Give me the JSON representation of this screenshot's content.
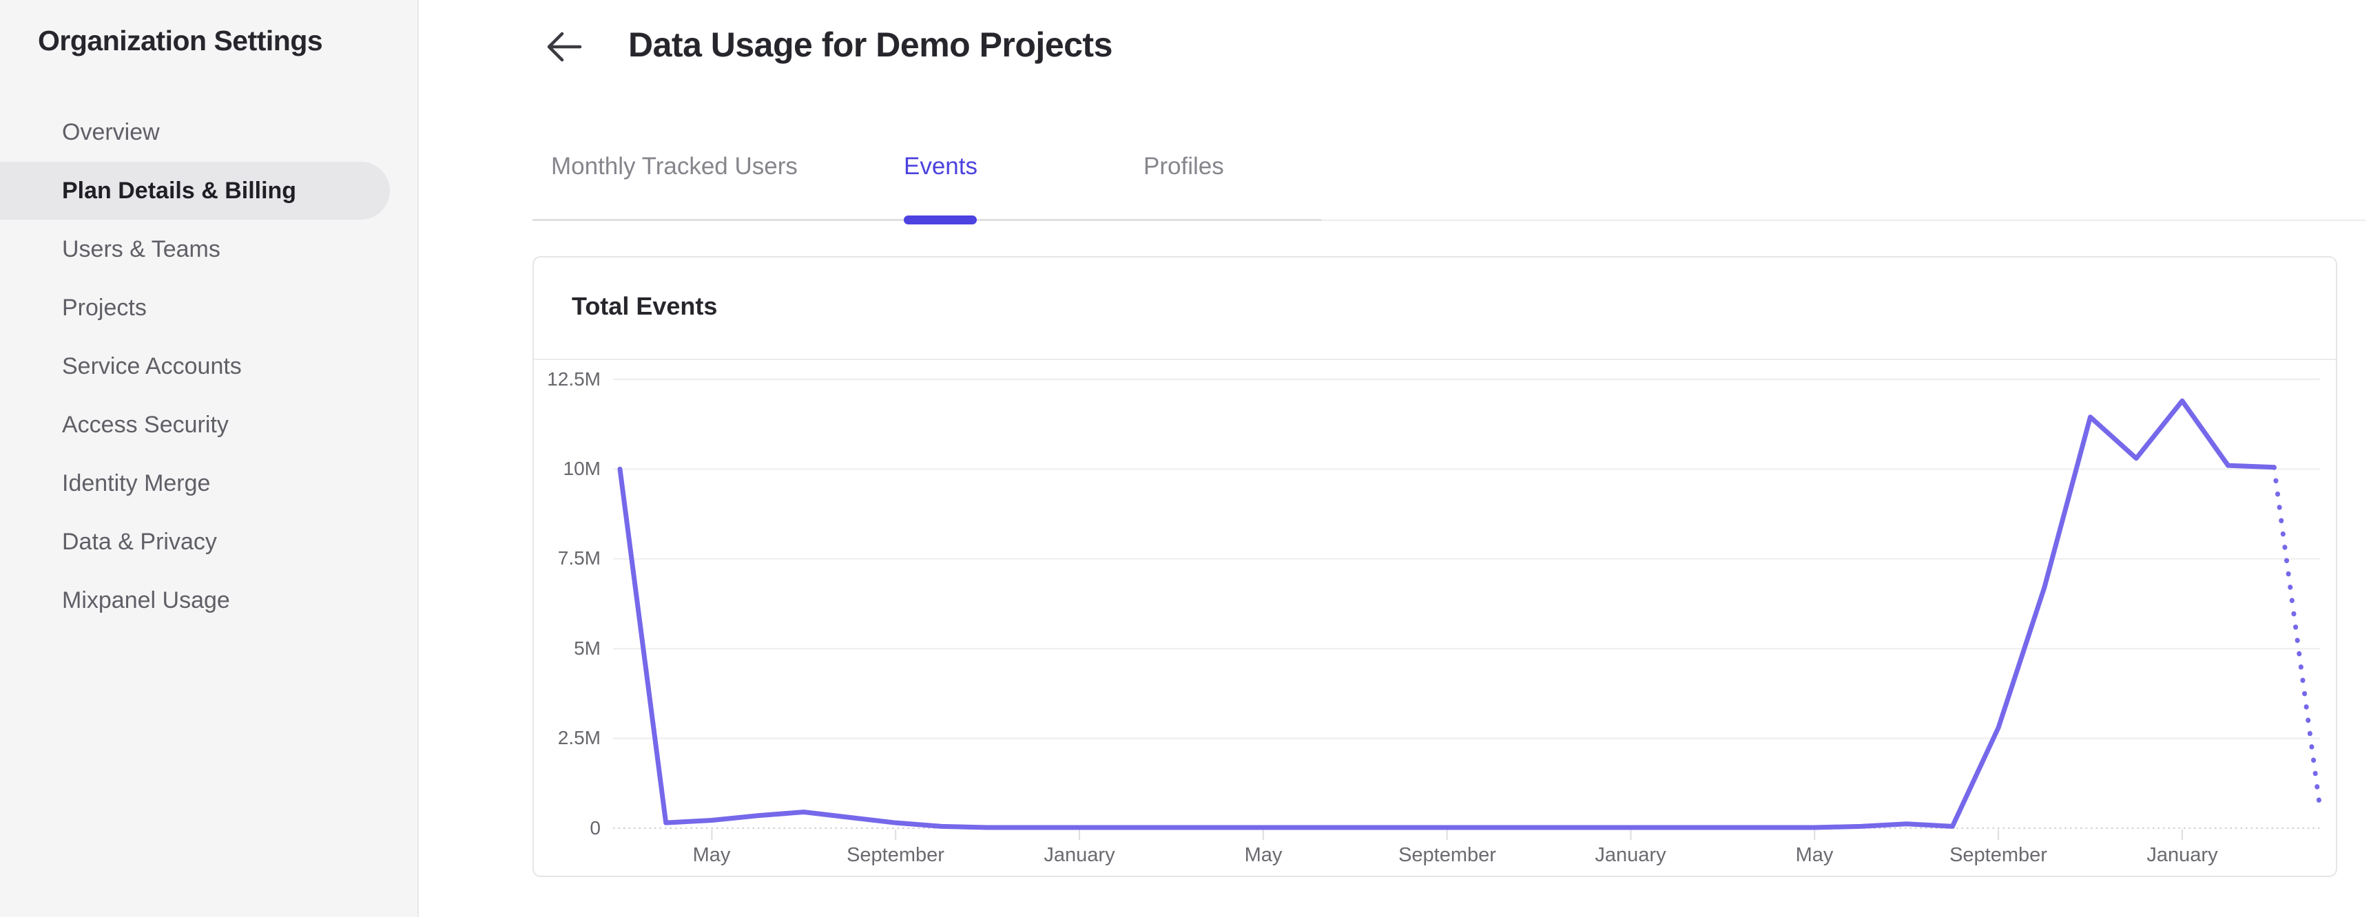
{
  "sidebar": {
    "title": "Organization Settings",
    "items": [
      {
        "label": "Overview",
        "selected": false
      },
      {
        "label": "Plan Details & Billing",
        "selected": true
      },
      {
        "label": "Users & Teams",
        "selected": false
      },
      {
        "label": "Projects",
        "selected": false
      },
      {
        "label": "Service Accounts",
        "selected": false
      },
      {
        "label": "Access Security",
        "selected": false
      },
      {
        "label": "Identity Merge",
        "selected": false
      },
      {
        "label": "Data & Privacy",
        "selected": false
      },
      {
        "label": "Mixpanel Usage",
        "selected": false
      }
    ]
  },
  "header": {
    "back_icon": "arrow-left",
    "title": "Data Usage for Demo Projects"
  },
  "tabs": [
    {
      "label": "Monthly Tracked Users",
      "active": false
    },
    {
      "label": "Events",
      "active": true
    },
    {
      "label": "Profiles",
      "active": false
    }
  ],
  "card": {
    "title": "Total Events"
  },
  "colors": {
    "accent": "#4c42df",
    "chart_line": "#7668ea",
    "sidebar_bg": "#f5f5f6",
    "selected_pill_bg": "#e7e7e9",
    "gridline": "#ededef",
    "axis_dotted": "#cfcfd3",
    "tick_mark": "#dddde0"
  },
  "chart_data": {
    "type": "line",
    "title": "Total Events",
    "unit": "events (millions)",
    "grid": true,
    "legend": "none",
    "ylim_millions": [
      0,
      12.5
    ],
    "y_tick_labels": [
      "0",
      "2.5M",
      "5M",
      "7.5M",
      "10M",
      "12.5M"
    ],
    "x_tick_labels": [
      "May",
      "September",
      "January",
      "May",
      "September",
      "January",
      "May",
      "September",
      "January"
    ],
    "x_tick_point_indices": [
      2,
      6,
      10,
      14,
      18,
      22,
      26,
      30,
      34
    ],
    "points_are_monthly": true,
    "first_point_month": "March",
    "series": [
      {
        "name": "Total Events",
        "style": "solid",
        "start_index": 0,
        "values_millions": [
          10,
          0.15,
          0.22,
          0.35,
          0.45,
          0.3,
          0.15,
          0.05,
          0.02,
          0.02,
          0.02,
          0.02,
          0.02,
          0.02,
          0.02,
          0.02,
          0.02,
          0.02,
          0.02,
          0.02,
          0.02,
          0.02,
          0.02,
          0.02,
          0.02,
          0.02,
          0.02,
          0.05,
          0.12,
          0.05,
          2.8,
          6.7,
          11.45,
          10.3,
          11.9,
          10.1,
          10.05
        ]
      },
      {
        "name": "Total Events (projected)",
        "style": "dotted",
        "start_index": 36,
        "values_millions": [
          10.05,
          0.55
        ]
      }
    ]
  }
}
